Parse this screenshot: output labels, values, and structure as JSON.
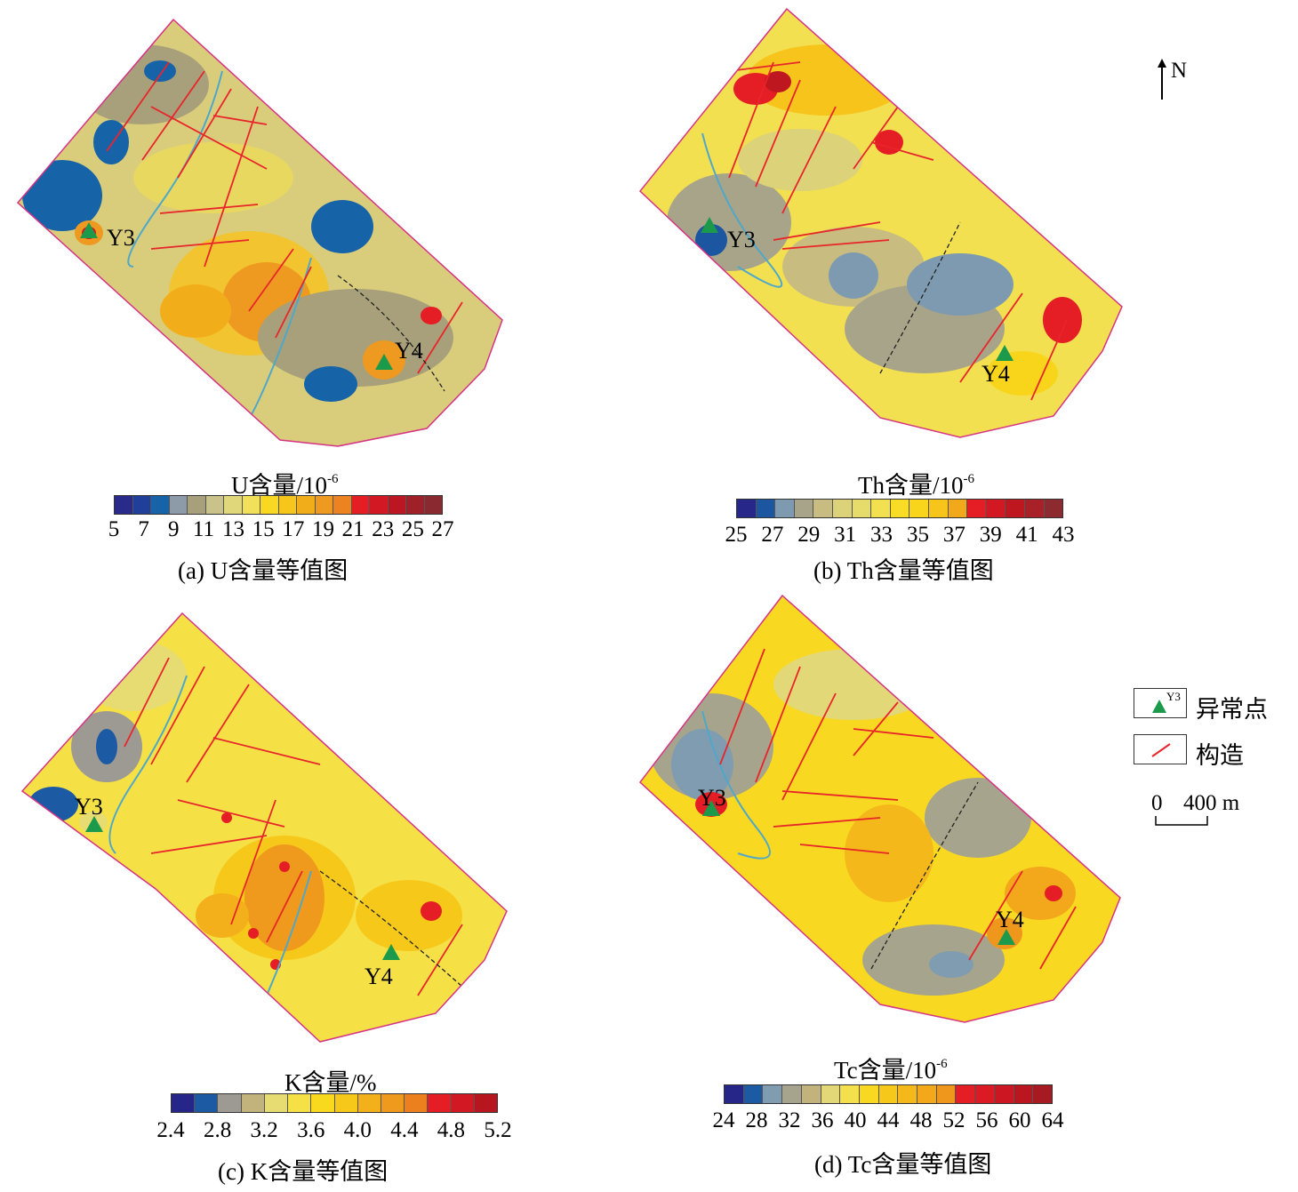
{
  "panels": [
    {
      "id": "a",
      "legend_title": "U含量/10",
      "legend_sup": "-6",
      "caption": "(a) U含量等值图",
      "ticks": [
        "5",
        "7",
        "9",
        "11",
        "13",
        "15",
        "17",
        "19",
        "21",
        "23",
        "25",
        "27"
      ],
      "colors": [
        "#2a2a8a",
        "#1f3f9a",
        "#1763a8",
        "#8d9aa8",
        "#a8a07a",
        "#c9c28a",
        "#e0d77a",
        "#f2e05a",
        "#f8d820",
        "#f6c61a",
        "#f2ae1a",
        "#ee9920",
        "#ec8220",
        "#e51e25",
        "#d21823",
        "#bc1622",
        "#a0202a",
        "#8a2a30"
      ],
      "points": [
        {
          "label": "Y3"
        },
        {
          "label": "Y4"
        }
      ]
    },
    {
      "id": "b",
      "legend_title": "Th含量/10",
      "legend_sup": "-6",
      "caption": "(b) Th含量等值图",
      "ticks": [
        "25",
        "27",
        "29",
        "31",
        "33",
        "35",
        "37",
        "39",
        "41",
        "43"
      ],
      "colors": [
        "#27278a",
        "#1c56a0",
        "#7d9ab0",
        "#a8a48a",
        "#c8bc80",
        "#dcd27a",
        "#e6dc6c",
        "#f2e050",
        "#f8dc26",
        "#f8d51a",
        "#f6c41a",
        "#f1a81a",
        "#e51e25",
        "#d21823",
        "#bf1720",
        "#a82028",
        "#8c2a30"
      ],
      "points": [
        {
          "label": "Y3"
        },
        {
          "label": "Y4"
        }
      ]
    },
    {
      "id": "c",
      "legend_title": "K含量/%",
      "legend_sup": "",
      "caption": "(c) K含量等值图",
      "ticks": [
        "2.4",
        "2.8",
        "3.2",
        "3.6",
        "4.0",
        "4.4",
        "4.8",
        "5.2"
      ],
      "colors": [
        "#262689",
        "#1c5aa4",
        "#9c9a92",
        "#c2b27c",
        "#e6dc72",
        "#f5e046",
        "#f8d91e",
        "#f6c81a",
        "#f3b01a",
        "#ef9a1c",
        "#ec7f1e",
        "#e51e25",
        "#d21823",
        "#b8161f"
      ],
      "points": [
        {
          "label": "Y3"
        },
        {
          "label": "Y4"
        }
      ]
    },
    {
      "id": "d",
      "legend_title": "Tc含量/10",
      "legend_sup": "-6",
      "caption": "(d) Tc含量等值图",
      "ticks": [
        "24",
        "28",
        "32",
        "36",
        "40",
        "44",
        "48",
        "52",
        "56",
        "60",
        "64"
      ],
      "colors": [
        "#262689",
        "#1c5aa4",
        "#7f9cb0",
        "#a6a48c",
        "#c2b27c",
        "#e3d878",
        "#f4e04c",
        "#f8d820",
        "#f6c81a",
        "#f4b81a",
        "#f2a81a",
        "#ef961c",
        "#e51e25",
        "#dc1a24",
        "#cc1722",
        "#bb1620",
        "#a81a22"
      ],
      "points": [
        {
          "label": "Y3"
        },
        {
          "label": "Y4"
        }
      ]
    }
  ],
  "north": {
    "label": "N"
  },
  "legend": {
    "point_symbol_text": "Y3",
    "point_label": "异常点",
    "structure_label": "构造"
  },
  "scale_bar": {
    "zero": "0",
    "distance": "400 m"
  },
  "colors": {
    "boundary": "#d63384",
    "structure": "#e8252a",
    "river": "#4fa7c9",
    "point": "#1a9a4a"
  }
}
